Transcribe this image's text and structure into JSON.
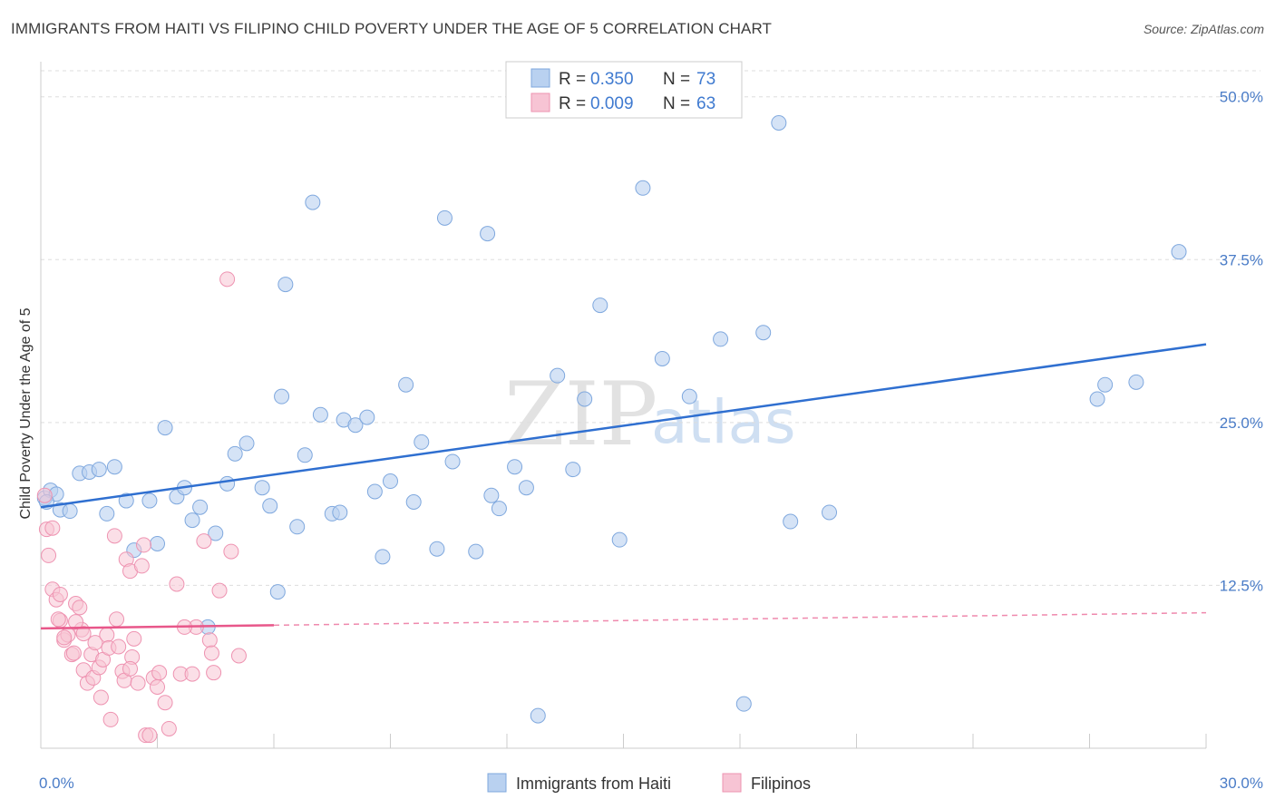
{
  "title": "IMMIGRANTS FROM HAITI VS FILIPINO CHILD POVERTY UNDER THE AGE OF 5 CORRELATION CHART",
  "source": "Source: ZipAtlas.com",
  "watermark": {
    "zip": "ZIP",
    "atlas": "atlas"
  },
  "colors": {
    "blue_fill": "#b9d1f0",
    "blue_stroke": "#7fa8de",
    "blue_line": "#2f6fd0",
    "pink_fill": "#f7c4d4",
    "pink_stroke": "#ee93b1",
    "pink_line": "#e8578a",
    "tick_text": "#4a7cc7",
    "grid": "#dddddd"
  },
  "legend": {
    "r_label": "R =",
    "n_label": "N =",
    "items": [
      {
        "r": "0.350",
        "n": "73"
      },
      {
        "r": "0.009",
        "n": "63"
      }
    ]
  },
  "chart_data": {
    "type": "scatter",
    "title": "IMMIGRANTS FROM HAITI VS FILIPINO CHILD POVERTY UNDER THE AGE OF 5 CORRELATION CHART",
    "xlabel": "",
    "ylabel": "Child Poverty Under the Age of 5",
    "xlim": [
      0,
      30
    ],
    "ylim": [
      0,
      52
    ],
    "x_tick_labels": [
      "0.0%",
      "30.0%"
    ],
    "y_ticks": [
      12.5,
      25.0,
      37.5,
      50.0
    ],
    "y_tick_labels": [
      "12.5%",
      "25.0%",
      "37.5%",
      "50.0%"
    ],
    "series": [
      {
        "name": "Immigrants from Haiti",
        "r": 0.35,
        "n": 73,
        "trend": {
          "x": [
            0,
            30
          ],
          "y": [
            18.5,
            31.0
          ],
          "dashed_from": null
        },
        "points": [
          [
            0.1,
            19.2
          ],
          [
            0.25,
            19.8
          ],
          [
            0.5,
            18.3
          ],
          [
            0.75,
            18.2
          ],
          [
            1.0,
            21.1
          ],
          [
            1.25,
            21.2
          ],
          [
            1.5,
            21.4
          ],
          [
            1.7,
            18.0
          ],
          [
            1.9,
            21.6
          ],
          [
            2.2,
            19.0
          ],
          [
            2.4,
            15.2
          ],
          [
            2.8,
            19.0
          ],
          [
            3.0,
            15.7
          ],
          [
            3.2,
            24.6
          ],
          [
            3.5,
            19.3
          ],
          [
            3.7,
            20.0
          ],
          [
            3.9,
            17.5
          ],
          [
            4.1,
            18.5
          ],
          [
            4.3,
            9.3
          ],
          [
            4.5,
            16.5
          ],
          [
            4.8,
            20.3
          ],
          [
            5.0,
            22.6
          ],
          [
            5.3,
            23.4
          ],
          [
            5.7,
            20.0
          ],
          [
            5.9,
            18.6
          ],
          [
            6.1,
            12.0
          ],
          [
            6.2,
            27.0
          ],
          [
            6.3,
            35.6
          ],
          [
            6.6,
            17.0
          ],
          [
            6.8,
            22.5
          ],
          [
            7.0,
            41.9
          ],
          [
            7.2,
            25.6
          ],
          [
            7.5,
            18.0
          ],
          [
            7.7,
            18.1
          ],
          [
            7.8,
            25.2
          ],
          [
            8.1,
            24.8
          ],
          [
            8.4,
            25.4
          ],
          [
            8.6,
            19.7
          ],
          [
            8.8,
            14.7
          ],
          [
            9.0,
            20.5
          ],
          [
            9.4,
            27.9
          ],
          [
            9.6,
            18.9
          ],
          [
            9.8,
            23.5
          ],
          [
            10.2,
            15.3
          ],
          [
            10.4,
            40.7
          ],
          [
            10.6,
            22.0
          ],
          [
            11.2,
            15.1
          ],
          [
            11.5,
            39.5
          ],
          [
            11.6,
            19.4
          ],
          [
            11.8,
            18.4
          ],
          [
            12.2,
            21.6
          ],
          [
            12.5,
            20.0
          ],
          [
            12.8,
            2.5
          ],
          [
            13.3,
            28.6
          ],
          [
            13.7,
            21.4
          ],
          [
            14.0,
            26.8
          ],
          [
            14.4,
            34.0
          ],
          [
            14.9,
            16.0
          ],
          [
            15.5,
            43.0
          ],
          [
            16.0,
            29.9
          ],
          [
            16.7,
            27.0
          ],
          [
            17.5,
            31.4
          ],
          [
            18.1,
            3.4
          ],
          [
            18.6,
            31.9
          ],
          [
            19.0,
            48.0
          ],
          [
            19.3,
            17.4
          ],
          [
            20.3,
            18.1
          ],
          [
            27.2,
            26.8
          ],
          [
            27.4,
            27.9
          ],
          [
            28.2,
            28.1
          ],
          [
            29.3,
            38.1
          ],
          [
            0.4,
            19.5
          ],
          [
            0.15,
            18.9
          ]
        ]
      },
      {
        "name": "Filipinos",
        "r": 0.009,
        "n": 63,
        "trend": {
          "x": [
            0,
            30
          ],
          "y": [
            9.2,
            10.4
          ],
          "dashed_from": 6.0
        },
        "points": [
          [
            0.1,
            19.4
          ],
          [
            0.15,
            16.8
          ],
          [
            0.2,
            14.8
          ],
          [
            0.3,
            16.9
          ],
          [
            0.3,
            12.2
          ],
          [
            0.4,
            11.4
          ],
          [
            0.5,
            9.8
          ],
          [
            0.5,
            11.8
          ],
          [
            0.6,
            8.3
          ],
          [
            0.7,
            8.7
          ],
          [
            0.8,
            7.2
          ],
          [
            0.85,
            7.3
          ],
          [
            0.9,
            11.1
          ],
          [
            1.0,
            10.8
          ],
          [
            1.05,
            9.1
          ],
          [
            1.1,
            6.0
          ],
          [
            1.2,
            5.0
          ],
          [
            1.3,
            7.2
          ],
          [
            1.35,
            5.4
          ],
          [
            1.4,
            8.1
          ],
          [
            1.5,
            6.2
          ],
          [
            1.55,
            3.9
          ],
          [
            1.6,
            6.8
          ],
          [
            1.7,
            8.7
          ],
          [
            1.75,
            7.7
          ],
          [
            1.8,
            2.2
          ],
          [
            1.9,
            16.3
          ],
          [
            1.95,
            9.9
          ],
          [
            2.0,
            7.8
          ],
          [
            2.1,
            5.9
          ],
          [
            2.15,
            5.2
          ],
          [
            2.2,
            14.5
          ],
          [
            2.3,
            13.6
          ],
          [
            2.35,
            7.0
          ],
          [
            2.4,
            8.4
          ],
          [
            2.5,
            5.0
          ],
          [
            2.6,
            14.0
          ],
          [
            2.65,
            15.6
          ],
          [
            2.7,
            1.0
          ],
          [
            2.8,
            1.0
          ],
          [
            2.9,
            5.4
          ],
          [
            3.0,
            4.7
          ],
          [
            3.05,
            5.8
          ],
          [
            3.2,
            3.5
          ],
          [
            3.3,
            1.5
          ],
          [
            3.5,
            12.6
          ],
          [
            3.6,
            5.7
          ],
          [
            3.9,
            5.7
          ],
          [
            4.0,
            9.3
          ],
          [
            4.2,
            15.9
          ],
          [
            4.35,
            8.3
          ],
          [
            4.4,
            7.3
          ],
          [
            4.45,
            5.8
          ],
          [
            4.6,
            12.1
          ],
          [
            4.8,
            36.0
          ],
          [
            4.9,
            15.1
          ],
          [
            5.1,
            7.1
          ],
          [
            0.6,
            8.5
          ],
          [
            0.9,
            9.7
          ],
          [
            1.1,
            8.8
          ],
          [
            2.3,
            6.1
          ],
          [
            3.7,
            9.3
          ],
          [
            0.45,
            9.9
          ]
        ]
      }
    ],
    "legend_position": "top-center"
  }
}
